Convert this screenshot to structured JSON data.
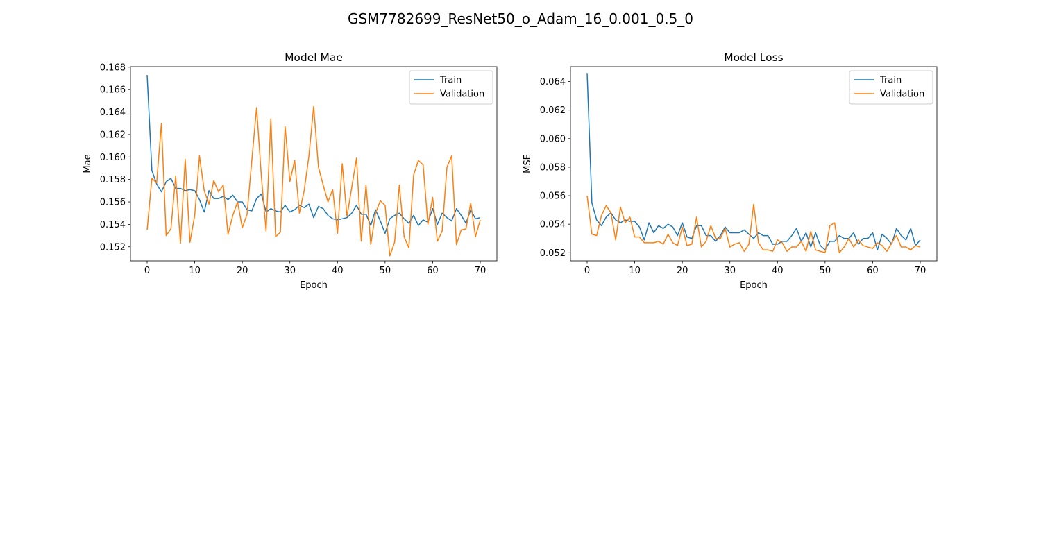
{
  "suptitle": "GSM7782699_ResNet50_o_Adam_16_0.001_0.5_0",
  "colors": {
    "train": "#1f77b4",
    "validation": "#ff7f0e"
  },
  "chart_data": [
    {
      "type": "line",
      "title": "Model Mae",
      "xlabel": "Epoch",
      "ylabel": "Mae",
      "xlim": [
        -3.5,
        73.5
      ],
      "ylim": [
        0.15075,
        0.16805
      ],
      "xticks": [
        0,
        10,
        20,
        30,
        40,
        50,
        60,
        70
      ],
      "xtick_labels": [
        "0",
        "10",
        "20",
        "30",
        "40",
        "50",
        "60",
        "70"
      ],
      "yticks": [
        0.152,
        0.154,
        0.156,
        0.158,
        0.16,
        0.162,
        0.164,
        0.166,
        0.168
      ],
      "ytick_labels": [
        "0.152",
        "0.154",
        "0.156",
        "0.158",
        "0.160",
        "0.162",
        "0.164",
        "0.166",
        "0.168"
      ],
      "legend": "upper right",
      "grid": false,
      "x": [
        0,
        1,
        2,
        3,
        4,
        5,
        6,
        7,
        8,
        9,
        10,
        11,
        12,
        13,
        14,
        15,
        16,
        17,
        18,
        19,
        20,
        21,
        22,
        23,
        24,
        25,
        26,
        27,
        28,
        29,
        30,
        31,
        32,
        33,
        34,
        35,
        36,
        37,
        38,
        39,
        40,
        41,
        42,
        43,
        44,
        45,
        46,
        47,
        48,
        49,
        50,
        51,
        52,
        53,
        54,
        55,
        56,
        57,
        58,
        59,
        60,
        61,
        62,
        63,
        64,
        65,
        66,
        67,
        68,
        69,
        70
      ],
      "series": [
        {
          "name": "Train",
          "color_key": "train",
          "values": [
            0.1673,
            0.1588,
            0.1576,
            0.1569,
            0.1578,
            0.1581,
            0.1572,
            0.1572,
            0.157,
            0.1571,
            0.157,
            0.1562,
            0.1551,
            0.157,
            0.1563,
            0.1563,
            0.1565,
            0.1562,
            0.1566,
            0.156,
            0.156,
            0.1553,
            0.1552,
            0.1563,
            0.1567,
            0.1551,
            0.1554,
            0.1552,
            0.1551,
            0.1557,
            0.1551,
            0.1553,
            0.1557,
            0.1555,
            0.1558,
            0.1546,
            0.1556,
            0.1554,
            0.1548,
            0.1545,
            0.1544,
            0.1545,
            0.1546,
            0.155,
            0.1557,
            0.1549,
            0.1549,
            0.1539,
            0.1553,
            0.1543,
            0.1532,
            0.1545,
            0.1548,
            0.155,
            0.1545,
            0.1541,
            0.1548,
            0.1539,
            0.1544,
            0.1542,
            0.1554,
            0.154,
            0.155,
            0.1546,
            0.1543,
            0.1554,
            0.1548,
            0.1541,
            0.1553,
            0.1545,
            0.1546
          ]
        },
        {
          "name": "Validation",
          "color_key": "validation",
          "values": [
            0.1535,
            0.1581,
            0.1577,
            0.163,
            0.153,
            0.1536,
            0.1583,
            0.1523,
            0.1598,
            0.1524,
            0.1548,
            0.1601,
            0.157,
            0.1558,
            0.1579,
            0.1569,
            0.1575,
            0.1531,
            0.1548,
            0.156,
            0.1537,
            0.1549,
            0.1597,
            0.1644,
            0.1583,
            0.1534,
            0.1634,
            0.1529,
            0.1533,
            0.1627,
            0.1578,
            0.1597,
            0.155,
            0.157,
            0.1601,
            0.1645,
            0.1591,
            0.1575,
            0.156,
            0.1571,
            0.1532,
            0.1594,
            0.1547,
            0.1573,
            0.1599,
            0.1525,
            0.1575,
            0.1522,
            0.155,
            0.1561,
            0.1557,
            0.1512,
            0.1524,
            0.1575,
            0.1529,
            0.1519,
            0.1584,
            0.1597,
            0.1593,
            0.154,
            0.1564,
            0.1525,
            0.1534,
            0.1591,
            0.1601,
            0.1522,
            0.1535,
            0.1536,
            0.1559,
            0.1529,
            0.1544
          ]
        }
      ]
    },
    {
      "type": "line",
      "title": "Model Loss",
      "xlabel": "Epoch",
      "ylabel": "MSE",
      "xlim": [
        -3.5,
        73.5
      ],
      "ylim": [
        0.05143,
        0.06505
      ],
      "xticks": [
        0,
        10,
        20,
        30,
        40,
        50,
        60,
        70
      ],
      "xtick_labels": [
        "0",
        "10",
        "20",
        "30",
        "40",
        "50",
        "60",
        "70"
      ],
      "yticks": [
        0.052,
        0.054,
        0.056,
        0.058,
        0.06,
        0.062,
        0.064
      ],
      "ytick_labels": [
        "0.052",
        "0.054",
        "0.056",
        "0.058",
        "0.060",
        "0.062",
        "0.064"
      ],
      "legend": "upper right",
      "grid": false,
      "x": [
        0,
        1,
        2,
        3,
        4,
        5,
        6,
        7,
        8,
        9,
        10,
        11,
        12,
        13,
        14,
        15,
        16,
        17,
        18,
        19,
        20,
        21,
        22,
        23,
        24,
        25,
        26,
        27,
        28,
        29,
        30,
        31,
        32,
        33,
        34,
        35,
        36,
        37,
        38,
        39,
        40,
        41,
        42,
        43,
        44,
        45,
        46,
        47,
        48,
        49,
        50,
        51,
        52,
        53,
        54,
        55,
        56,
        57,
        58,
        59,
        60,
        61,
        62,
        63,
        64,
        65,
        66,
        67,
        68,
        69,
        70
      ],
      "series": [
        {
          "name": "Train",
          "color_key": "train",
          "values": [
            0.0646,
            0.0555,
            0.0543,
            0.0539,
            0.0545,
            0.0548,
            0.0543,
            0.0541,
            0.0543,
            0.0542,
            0.0542,
            0.0538,
            0.0529,
            0.0541,
            0.0534,
            0.0539,
            0.0537,
            0.054,
            0.0538,
            0.0532,
            0.0541,
            0.0531,
            0.053,
            0.0539,
            0.0539,
            0.0532,
            0.0532,
            0.0528,
            0.0532,
            0.0538,
            0.0534,
            0.0534,
            0.0534,
            0.0536,
            0.0533,
            0.053,
            0.0534,
            0.0532,
            0.0532,
            0.0526,
            0.0526,
            0.0528,
            0.0528,
            0.0532,
            0.0537,
            0.0528,
            0.0534,
            0.0524,
            0.0534,
            0.0525,
            0.0522,
            0.0528,
            0.0528,
            0.0532,
            0.053,
            0.053,
            0.0534,
            0.0526,
            0.053,
            0.053,
            0.0534,
            0.0522,
            0.0533,
            0.053,
            0.0526,
            0.0537,
            0.0532,
            0.0529,
            0.0537,
            0.0525,
            0.0529
          ]
        },
        {
          "name": "Validation",
          "color_key": "validation",
          "values": [
            0.056,
            0.0533,
            0.0532,
            0.0546,
            0.0553,
            0.0548,
            0.0529,
            0.0552,
            0.0541,
            0.0545,
            0.0531,
            0.0531,
            0.0527,
            0.0527,
            0.0527,
            0.0528,
            0.0526,
            0.0533,
            0.0527,
            0.0525,
            0.0538,
            0.0525,
            0.0526,
            0.0545,
            0.0524,
            0.0528,
            0.0539,
            0.053,
            0.053,
            0.0537,
            0.0524,
            0.0526,
            0.0527,
            0.0521,
            0.0526,
            0.0554,
            0.0527,
            0.0522,
            0.0522,
            0.0521,
            0.0529,
            0.0527,
            0.0521,
            0.0524,
            0.0524,
            0.0528,
            0.0521,
            0.0535,
            0.0522,
            0.0521,
            0.052,
            0.0539,
            0.0541,
            0.052,
            0.0524,
            0.053,
            0.0524,
            0.0529,
            0.0525,
            0.0524,
            0.0523,
            0.0527,
            0.0525,
            0.0521,
            0.0527,
            0.0532,
            0.0524,
            0.0524,
            0.0522,
            0.0525,
            0.0524
          ]
        }
      ]
    }
  ]
}
